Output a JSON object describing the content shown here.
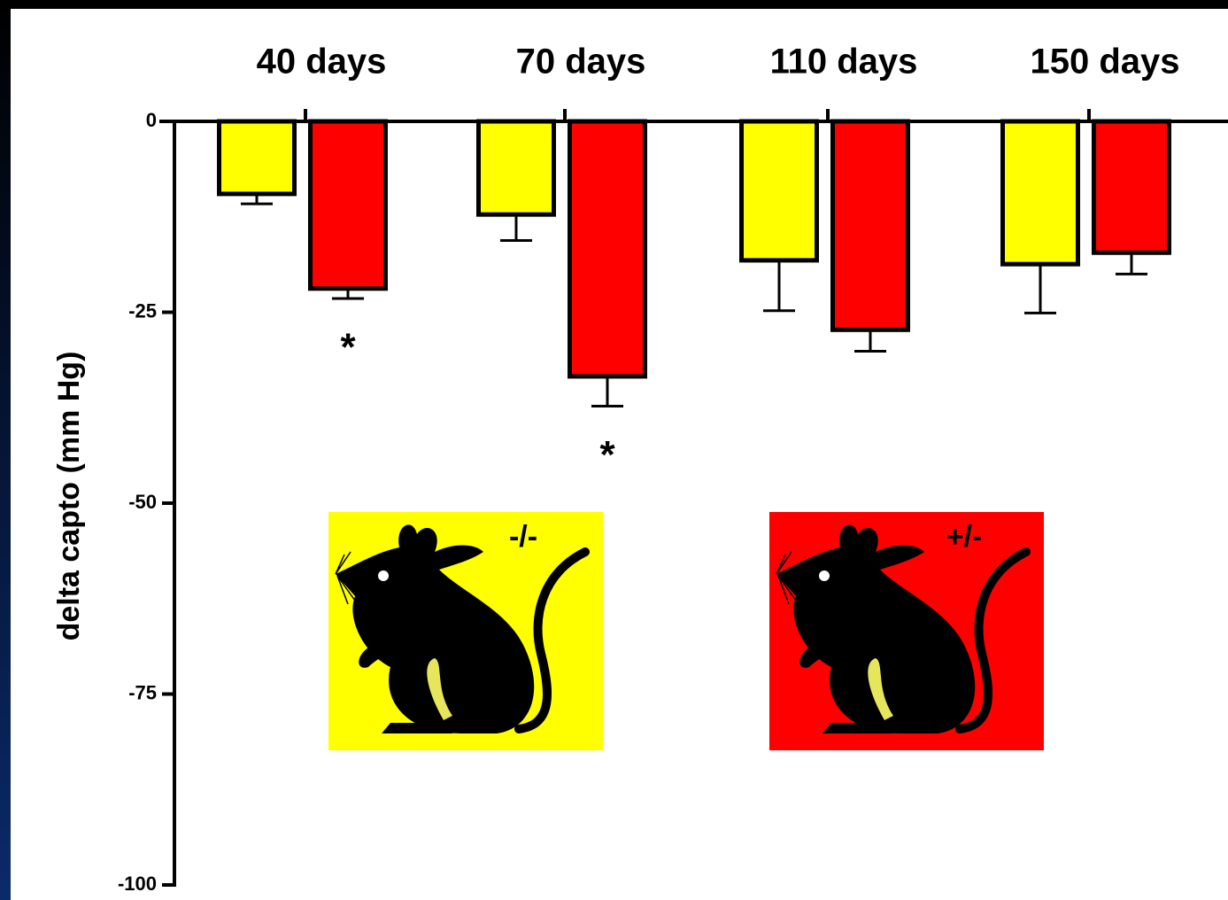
{
  "chart_data": {
    "type": "bar",
    "y_label": "delta capto (mm Hg)",
    "categories": [
      "40 days",
      "70 days",
      "110 days",
      "150 days"
    ],
    "series": [
      {
        "name": "-/-",
        "color": "#ffff00",
        "values": [
          -9.5,
          -12.2,
          -18.2,
          -18.7
        ],
        "errors": [
          1.3,
          3.4,
          6.6,
          6.4
        ]
      },
      {
        "name": "+/-",
        "color": "#ff0000",
        "values": [
          -21.9,
          -33.4,
          -27.3,
          -17.2
        ],
        "errors": [
          1.3,
          3.9,
          2.8,
          2.8
        ],
        "annotations": [
          "*",
          "*",
          null,
          null
        ]
      }
    ],
    "ylim": [
      -100,
      0
    ],
    "yticks": [
      0,
      -25,
      -50,
      -75,
      -100
    ]
  }
}
